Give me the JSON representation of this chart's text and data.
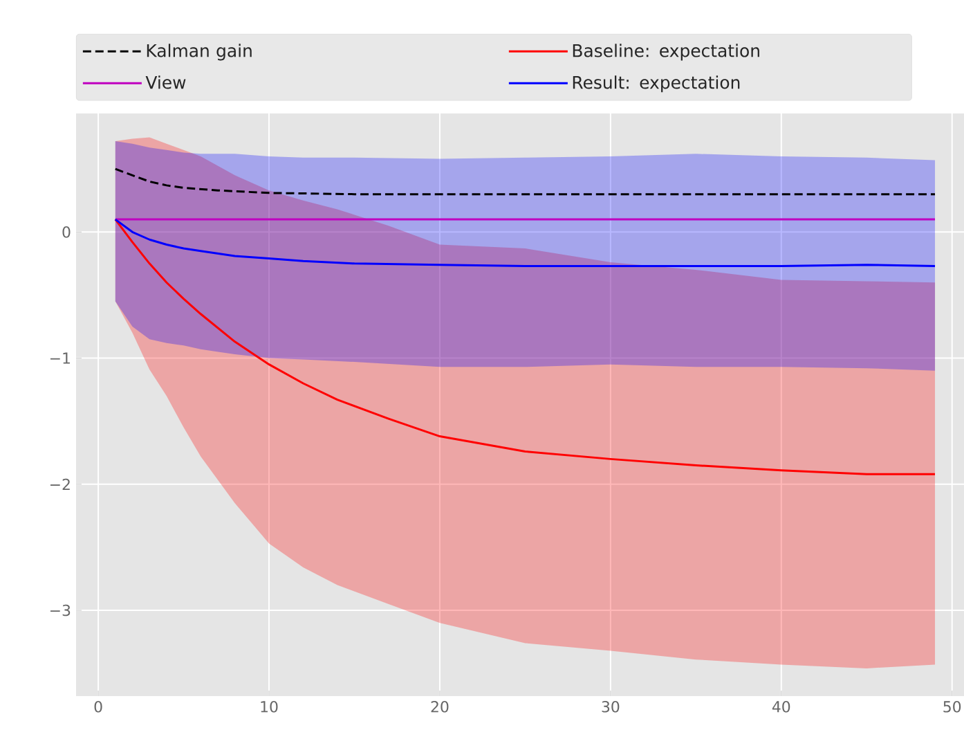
{
  "chart_data": {
    "type": "line",
    "xlim": [
      -1.3,
      50.7
    ],
    "ylim": [
      -3.68,
      0.94
    ],
    "xticks": [
      0,
      10,
      20,
      30,
      40,
      50
    ],
    "yticks": [
      {
        "value": -3,
        "label": "−3"
      },
      {
        "value": -2,
        "label": "−2"
      },
      {
        "value": -1,
        "label": "−1"
      },
      0
    ],
    "grid": true,
    "legend": "top",
    "marker": "none",
    "series": [
      {
        "name": "Kalman gain",
        "color": "#000000",
        "line_style": "dashed",
        "x": [
          1,
          2,
          3,
          4,
          5,
          7,
          10,
          15,
          20,
          30,
          40,
          49
        ],
        "values": [
          0.5,
          0.45,
          0.4,
          0.37,
          0.35,
          0.33,
          0.31,
          0.3,
          0.3,
          0.3,
          0.3,
          0.3
        ]
      },
      {
        "name": "View",
        "color": "#bf00bf",
        "line_style": "solid",
        "x": [
          1,
          49
        ],
        "values": [
          0.1,
          0.1
        ]
      },
      {
        "name": "Baseline: expectation",
        "color": "#ff0000",
        "line_style": "solid",
        "x": [
          1,
          2,
          3,
          4,
          5,
          6,
          8,
          10,
          12,
          14,
          17,
          20,
          25,
          30,
          35,
          40,
          45,
          49
        ],
        "values": [
          0.1,
          -0.08,
          -0.25,
          -0.4,
          -0.53,
          -0.65,
          -0.87,
          -1.05,
          -1.2,
          -1.33,
          -1.48,
          -1.62,
          -1.74,
          -1.8,
          -1.85,
          -1.89,
          -1.92,
          -1.92
        ],
        "lower": [
          -0.55,
          -0.8,
          -1.09,
          -1.3,
          -1.55,
          -1.78,
          -2.15,
          -2.47,
          -2.66,
          -2.8,
          -2.95,
          -3.1,
          -3.26,
          -3.32,
          -3.39,
          -3.43,
          -3.46,
          -3.43
        ],
        "upper": [
          0.72,
          0.74,
          0.75,
          0.7,
          0.65,
          0.6,
          0.45,
          0.33,
          0.25,
          0.18,
          0.05,
          -0.1,
          -0.13,
          -0.24,
          -0.3,
          -0.38,
          -0.39,
          -0.4
        ]
      },
      {
        "name": "Result: expectation",
        "color": "#0000ff",
        "line_style": "solid",
        "x": [
          1,
          2,
          3,
          4,
          5,
          6,
          8,
          10,
          12,
          15,
          20,
          25,
          30,
          35,
          40,
          45,
          49
        ],
        "values": [
          0.1,
          0.0,
          -0.06,
          -0.1,
          -0.13,
          -0.15,
          -0.19,
          -0.21,
          -0.23,
          -0.25,
          -0.26,
          -0.27,
          -0.27,
          -0.27,
          -0.27,
          -0.26,
          -0.27
        ],
        "lower": [
          -0.55,
          -0.75,
          -0.85,
          -0.88,
          -0.9,
          -0.93,
          -0.97,
          -1.0,
          -1.01,
          -1.03,
          -1.07,
          -1.07,
          -1.05,
          -1.07,
          -1.07,
          -1.08,
          -1.1
        ],
        "upper": [
          0.72,
          0.7,
          0.67,
          0.65,
          0.63,
          0.62,
          0.62,
          0.6,
          0.59,
          0.59,
          0.58,
          0.59,
          0.6,
          0.62,
          0.6,
          0.59,
          0.57
        ]
      }
    ]
  }
}
